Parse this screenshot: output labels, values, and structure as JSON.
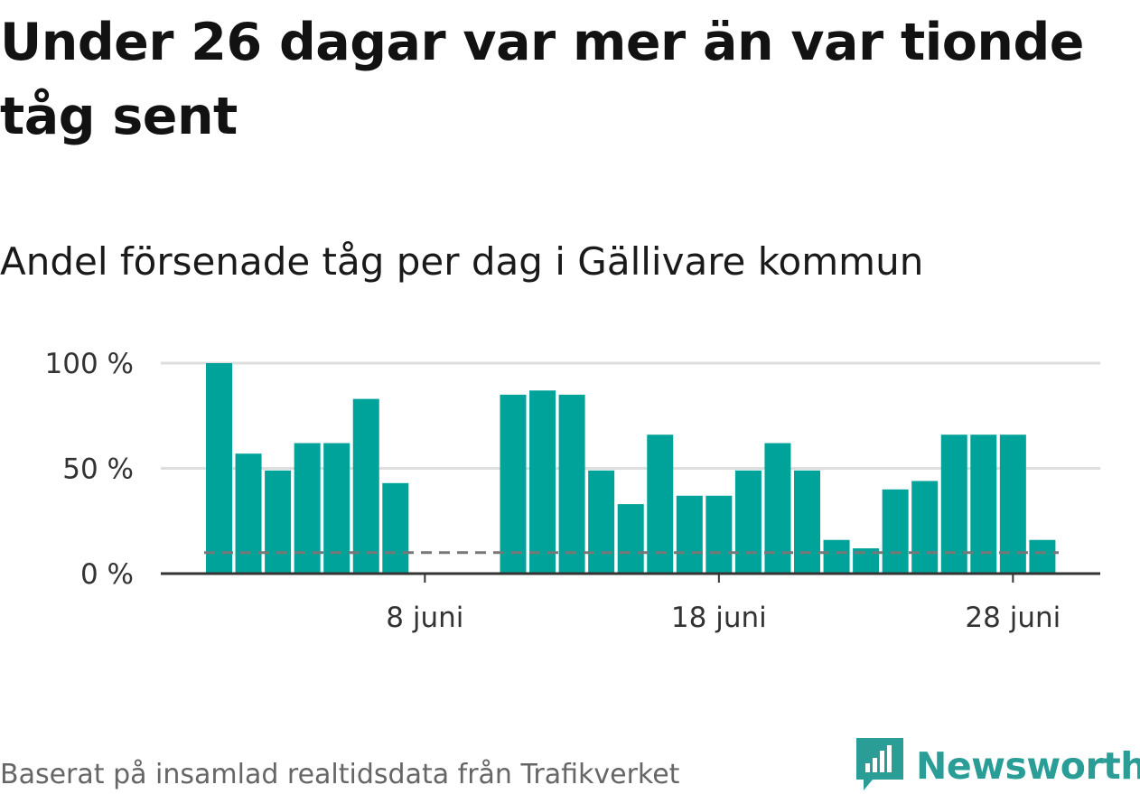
{
  "header": {
    "title": "Under 26 dagar var mer än var tionde tåg sent",
    "subtitle": "Andel försenade tåg per dag i Gällivare kommun"
  },
  "footer": {
    "source": "Baserat på insamlad realtidsdata från Trafikverket",
    "brand": "Newsworthy"
  },
  "colors": {
    "bar": "#00a39a",
    "grid": "#dedede",
    "axis": "#333333",
    "reference": "#777777",
    "brand": "#2a9d96"
  },
  "chart_data": {
    "type": "bar",
    "title": "Andel försenade tåg per dag i Gällivare kommun",
    "x": [
      "1 juni",
      "2 juni",
      "3 juni",
      "4 juni",
      "5 juni",
      "6 juni",
      "7 juni",
      "8 juni",
      "9 juni",
      "10 juni",
      "11 juni",
      "12 juni",
      "13 juni",
      "14 juni",
      "15 juni",
      "16 juni",
      "17 juni",
      "18 juni",
      "19 juni",
      "20 juni",
      "21 juni",
      "22 juni",
      "23 juni",
      "24 juni",
      "25 juni",
      "26 juni",
      "27 juni",
      "28 juni",
      "29 juni"
    ],
    "values": [
      100,
      57,
      49,
      62,
      62,
      83,
      43,
      null,
      null,
      null,
      85,
      87,
      85,
      49,
      33,
      66,
      37,
      37,
      49,
      62,
      49,
      16,
      12,
      40,
      44,
      66,
      66,
      66,
      16
    ],
    "reference_line": 10,
    "ylim": [
      0,
      100
    ],
    "y_ticks": [
      {
        "value": 0,
        "label": "0 %"
      },
      {
        "value": 50,
        "label": "50 %"
      },
      {
        "value": 100,
        "label": "100 %"
      }
    ],
    "x_ticks": [
      {
        "at": "8 juni",
        "label": "8 juni"
      },
      {
        "at": "18 juni",
        "label": "18 juni"
      },
      {
        "at": "28 juni",
        "label": "28 juni"
      }
    ],
    "grid": true,
    "legend": "none"
  }
}
